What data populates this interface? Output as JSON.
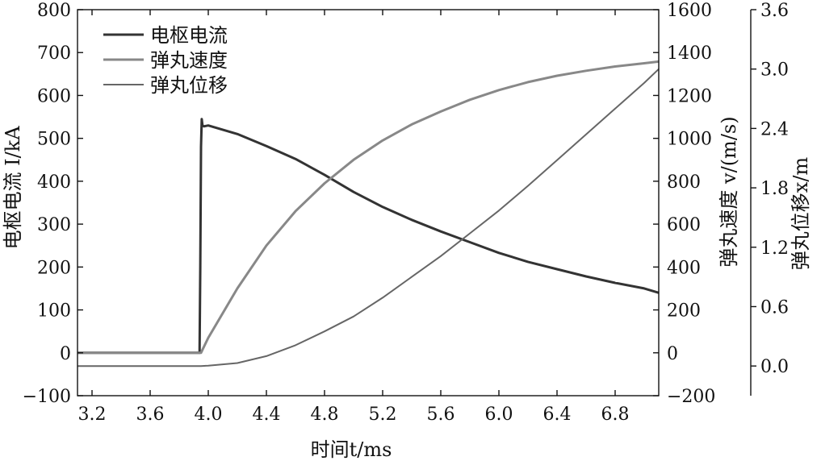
{
  "chart_data": {
    "type": "line",
    "xlabel": "时间t/ms",
    "ylabel_left": "电枢电流 I/kA",
    "ylabel_right1": "弹丸速度 v/(m/s)",
    "ylabel_right2": "弹丸位移x/m",
    "xlim": [
      3.1,
      7.1
    ],
    "xticks": [
      "3.2",
      "3.6",
      "4.0",
      "4.4",
      "4.8",
      "5.2",
      "5.6",
      "6.0",
      "6.4",
      "6.8"
    ],
    "y_left": {
      "lim": [
        -100,
        800
      ],
      "ticks": [
        "−100",
        "0",
        "100",
        "200",
        "300",
        "400",
        "500",
        "600",
        "700",
        "800"
      ]
    },
    "y_right1": {
      "lim": [
        -200,
        1600
      ],
      "ticks": [
        "−200",
        "0",
        "200",
        "400",
        "600",
        "800",
        "1000",
        "1200",
        "1400",
        "1600"
      ]
    },
    "y_right2": {
      "lim": [
        -0.3,
        3.6
      ],
      "ticks": [
        "0.0",
        "0.6",
        "1.2",
        "1.8",
        "2.4",
        "3.0",
        "3.6"
      ]
    },
    "legend_position": "top-left",
    "series": [
      {
        "name": "电枢电流",
        "axis": "left",
        "color": "#333333",
        "x": [
          3.1,
          3.94,
          3.945,
          3.95,
          3.955,
          3.96,
          3.97,
          4.0,
          4.2,
          4.4,
          4.6,
          4.8,
          5.0,
          5.2,
          5.4,
          5.6,
          5.8,
          6.0,
          6.2,
          6.4,
          6.6,
          6.8,
          7.0,
          7.1
        ],
        "y": [
          0,
          0,
          200,
          480,
          545,
          530,
          528,
          530,
          510,
          482,
          452,
          415,
          375,
          340,
          310,
          283,
          258,
          233,
          212,
          195,
          178,
          163,
          150,
          140
        ]
      },
      {
        "name": "弹丸速度",
        "axis": "right1",
        "color": "#888888",
        "x": [
          3.1,
          3.95,
          4.0,
          4.2,
          4.4,
          4.6,
          4.8,
          5.0,
          5.2,
          5.4,
          5.6,
          5.8,
          6.0,
          6.2,
          6.4,
          6.6,
          6.8,
          7.0,
          7.1
        ],
        "y": [
          0,
          0,
          70,
          300,
          500,
          660,
          790,
          900,
          990,
          1065,
          1125,
          1180,
          1225,
          1262,
          1292,
          1315,
          1335,
          1350,
          1358
        ]
      },
      {
        "name": "弹丸位移",
        "axis": "right2",
        "color": "#666666",
        "x": [
          3.1,
          3.95,
          4.0,
          4.2,
          4.4,
          4.6,
          4.8,
          5.0,
          5.2,
          5.4,
          5.6,
          5.8,
          6.0,
          6.2,
          6.4,
          6.6,
          6.8,
          7.0,
          7.1
        ],
        "y": [
          0,
          0,
          0.004,
          0.03,
          0.1,
          0.21,
          0.35,
          0.5,
          0.69,
          0.9,
          1.11,
          1.34,
          1.57,
          1.82,
          2.08,
          2.34,
          2.6,
          2.86,
          3.0
        ]
      }
    ]
  }
}
